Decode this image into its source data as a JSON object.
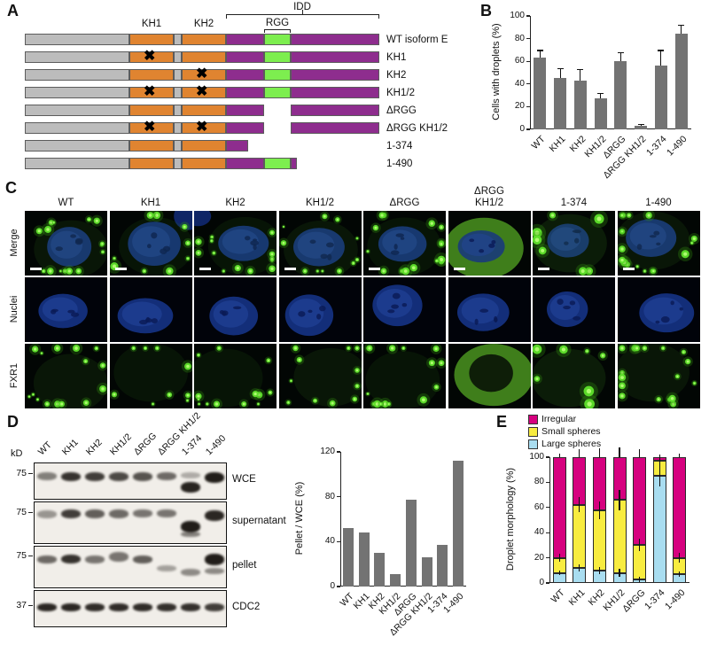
{
  "panelA": {
    "label": "A",
    "x_glyph": "✖",
    "annotations": {
      "idd": "IDD",
      "rgg": "RGG",
      "kh1": "KH1",
      "kh2": "KH2"
    },
    "colors": {
      "backbone": "#bcbcbc",
      "kh": "#e08430",
      "idd": "#8e2d8e",
      "rgg": "#7dee4f",
      "outline": "#5c5c5c"
    },
    "constructs": [
      {
        "label": "WT isoform E",
        "variant": "full",
        "x_kh1": false,
        "x_kh2": false
      },
      {
        "label": "KH1",
        "variant": "full",
        "x_kh1": true,
        "x_kh2": false
      },
      {
        "label": "KH2",
        "variant": "full",
        "x_kh1": false,
        "x_kh2": true
      },
      {
        "label": "KH1/2",
        "variant": "full",
        "x_kh1": true,
        "x_kh2": true
      },
      {
        "label": "ΔRGG",
        "variant": "delta_rgg",
        "x_kh1": false,
        "x_kh2": false
      },
      {
        "label": "ΔRGG KH1/2",
        "variant": "delta_rgg",
        "x_kh1": true,
        "x_kh2": true
      },
      {
        "label": "1-374",
        "variant": "trunc374",
        "x_kh1": false,
        "x_kh2": false
      },
      {
        "label": "1-490",
        "variant": "trunc490",
        "x_kh1": false,
        "x_kh2": false
      }
    ]
  },
  "panelB": {
    "label": "B",
    "chart_data": {
      "type": "bar",
      "categories": [
        "WT",
        "KH1",
        "KH2",
        "KH1/2",
        "ΔRGG",
        "ΔRGG KH1/2",
        "1-374",
        "1-490"
      ],
      "values": [
        63,
        45,
        43,
        27,
        60,
        3,
        56,
        84
      ],
      "errors": [
        7,
        9,
        10,
        5,
        8,
        2,
        14,
        8
      ],
      "ylabel": "Cells with droplets (%)",
      "ylim": [
        0,
        100
      ],
      "yticks": [
        0,
        20,
        40,
        60,
        80,
        100
      ],
      "bar_color": "#737373"
    }
  },
  "panelC": {
    "label": "C",
    "row_labels": [
      "Merge",
      "Nuclei",
      "FXR1"
    ],
    "col_labels": [
      "WT",
      "KH1",
      "KH2",
      "KH1/2",
      "ΔRGG",
      "ΔRGG\nKH1/2",
      "1-374",
      "1-490"
    ],
    "patterns": [
      {
        "puncta": 15,
        "size": 3.2,
        "diffuse": 0.12
      },
      {
        "puncta": 9,
        "size": 3.6,
        "diffuse": 0.1
      },
      {
        "puncta": 13,
        "size": 3.0,
        "diffuse": 0.1
      },
      {
        "puncta": 11,
        "size": 2.6,
        "diffuse": 0.12
      },
      {
        "puncta": 15,
        "size": 3.4,
        "diffuse": 0.1
      },
      {
        "puncta": 0,
        "size": 0,
        "diffuse": 0.62
      },
      {
        "puncta": 7,
        "size": 4.6,
        "diffuse": 0.16
      },
      {
        "puncta": 18,
        "size": 3.6,
        "diffuse": 0.12
      }
    ]
  },
  "panelD": {
    "label": "D",
    "kd_label": "kD",
    "lane_labels": [
      "WT",
      "KH1",
      "KH2",
      "KH1/2",
      "ΔRGG",
      "ΔRGG KH1/2",
      "1-374",
      "1-490"
    ],
    "blots": [
      {
        "label": "WCE",
        "marker": "75",
        "marker_o": 0.3,
        "bands": [
          {
            "l": 0,
            "o": 0.26,
            "i": 0.5,
            "h": 9
          },
          {
            "l": 1,
            "o": 0.24,
            "i": 0.85,
            "h": 10
          },
          {
            "l": 2,
            "o": 0.24,
            "i": 0.8,
            "h": 10
          },
          {
            "l": 3,
            "o": 0.24,
            "i": 0.75,
            "h": 10
          },
          {
            "l": 4,
            "o": 0.24,
            "i": 0.7,
            "h": 10
          },
          {
            "l": 5,
            "o": 0.25,
            "i": 0.6,
            "h": 9
          },
          {
            "l": 6,
            "o": 0.52,
            "i": 0.92,
            "h": 12
          },
          {
            "l": 6,
            "o": 0.24,
            "i": 0.3,
            "h": 7
          },
          {
            "l": 7,
            "o": 0.24,
            "i": 0.95,
            "h": 12
          }
        ]
      },
      {
        "label": "supernatant",
        "marker": "75",
        "marker_o": 0.26,
        "bands": [
          {
            "l": 0,
            "o": 0.2,
            "i": 0.4,
            "h": 9
          },
          {
            "l": 1,
            "o": 0.18,
            "i": 0.8,
            "h": 10
          },
          {
            "l": 2,
            "o": 0.18,
            "i": 0.65,
            "h": 10
          },
          {
            "l": 3,
            "o": 0.18,
            "i": 0.6,
            "h": 10
          },
          {
            "l": 4,
            "o": 0.18,
            "i": 0.55,
            "h": 9
          },
          {
            "l": 5,
            "o": 0.18,
            "i": 0.55,
            "h": 9
          },
          {
            "l": 6,
            "o": 0.45,
            "i": 0.95,
            "h": 13
          },
          {
            "l": 6,
            "o": 0.72,
            "i": 0.5,
            "h": 6
          },
          {
            "l": 7,
            "o": 0.2,
            "i": 0.9,
            "h": 12
          }
        ]
      },
      {
        "label": "pellet",
        "marker": "75",
        "marker_o": 0.24,
        "bands": [
          {
            "l": 0,
            "o": 0.22,
            "i": 0.6,
            "h": 9
          },
          {
            "l": 1,
            "o": 0.2,
            "i": 0.85,
            "h": 10
          },
          {
            "l": 2,
            "o": 0.22,
            "i": 0.55,
            "h": 9
          },
          {
            "l": 3,
            "o": 0.14,
            "i": 0.55,
            "h": 11
          },
          {
            "l": 4,
            "o": 0.22,
            "i": 0.65,
            "h": 9
          },
          {
            "l": 5,
            "o": 0.46,
            "i": 0.35,
            "h": 7
          },
          {
            "l": 6,
            "o": 0.55,
            "i": 0.45,
            "h": 8
          },
          {
            "l": 7,
            "o": 0.18,
            "i": 0.95,
            "h": 13
          },
          {
            "l": 7,
            "o": 0.52,
            "i": 0.45,
            "h": 7
          }
        ]
      },
      {
        "label": "CDC2",
        "marker": "37",
        "marker_o": 0.42,
        "bands": [
          {
            "l": 0,
            "o": 0.36,
            "i": 0.9,
            "h": 9
          },
          {
            "l": 1,
            "o": 0.36,
            "i": 0.9,
            "h": 9
          },
          {
            "l": 2,
            "o": 0.36,
            "i": 0.88,
            "h": 9
          },
          {
            "l": 3,
            "o": 0.36,
            "i": 0.88,
            "h": 9
          },
          {
            "l": 4,
            "o": 0.36,
            "i": 0.88,
            "h": 9
          },
          {
            "l": 5,
            "o": 0.36,
            "i": 0.86,
            "h": 9
          },
          {
            "l": 6,
            "o": 0.36,
            "i": 0.86,
            "h": 9
          },
          {
            "l": 7,
            "o": 0.36,
            "i": 0.8,
            "h": 9
          }
        ]
      }
    ],
    "chart_data": {
      "type": "bar",
      "categories": [
        "WT",
        "KH1",
        "KH2",
        "KH1/2",
        "ΔRGG",
        "ΔRGG KH1/2",
        "1-374",
        "1-490"
      ],
      "values": [
        52,
        48,
        30,
        11,
        77,
        26,
        37,
        112
      ],
      "ylabel": "Pellet / WCE (%)",
      "ylim": [
        0,
        120
      ],
      "yticks": [
        0,
        40,
        80,
        120
      ],
      "bar_color": "#737373"
    }
  },
  "panelE": {
    "label": "E",
    "chart_data": {
      "type": "stacked_bar",
      "categories": [
        "WT",
        "KH1",
        "KH2",
        "KH1/2",
        "ΔRGG",
        "1-374",
        "1-490"
      ],
      "series": [
        {
          "name": "Large spheres",
          "color": "#a9ddf0",
          "values": [
            8,
            12,
            10,
            8,
            3,
            85,
            7
          ]
        },
        {
          "name": "Small spheres",
          "color": "#f8ec40",
          "values": [
            12,
            50,
            48,
            58,
            27,
            12,
            13
          ]
        },
        {
          "name": "Irregular",
          "color": "#d6017f",
          "values": [
            80,
            38,
            42,
            34,
            70,
            3,
            80
          ]
        }
      ],
      "errors": [
        [
          2,
          3,
          3
        ],
        [
          3,
          6,
          6
        ],
        [
          3,
          7,
          7
        ],
        [
          3,
          8,
          8
        ],
        [
          2,
          5,
          6
        ],
        [
          8,
          4,
          2
        ],
        [
          2,
          4,
          3
        ]
      ],
      "ylabel": "Droplet morphology (%)",
      "ylim": [
        0,
        100
      ],
      "yticks": [
        0,
        20,
        40,
        60,
        80,
        100
      ]
    }
  }
}
